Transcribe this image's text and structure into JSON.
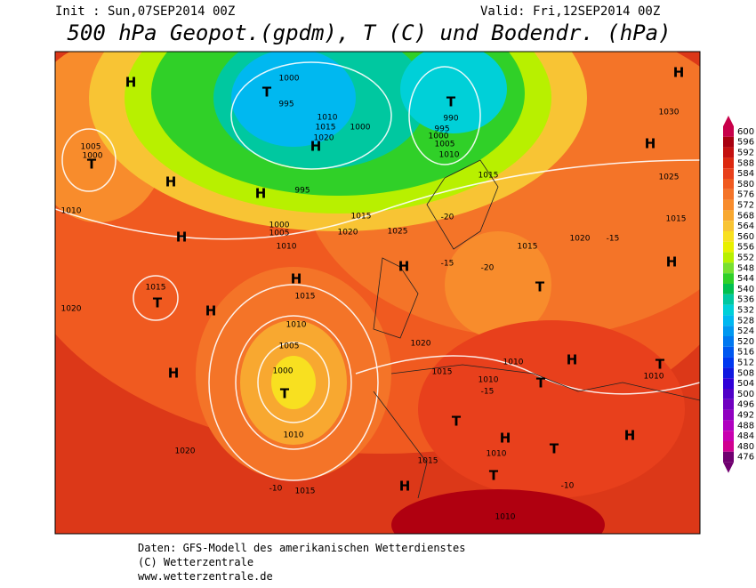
{
  "header": {
    "init": "Init : Sun,07SEP2014 00Z",
    "valid": "Valid: Fri,12SEP2014 00Z",
    "title": "500 hPa Geopot.(gpdm), T (C) und Bodendr. (hPa)"
  },
  "colorbar": {
    "values": [
      600,
      596,
      592,
      588,
      584,
      580,
      576,
      572,
      568,
      564,
      560,
      556,
      552,
      548,
      544,
      540,
      536,
      532,
      528,
      524,
      520,
      516,
      512,
      508,
      504,
      500,
      496,
      492,
      488,
      484,
      480,
      476
    ],
    "colors": [
      "#c8004a",
      "#a80010",
      "#c41010",
      "#dc2810",
      "#e8401c",
      "#f05a20",
      "#f47428",
      "#f88c2c",
      "#f8a830",
      "#f8c434",
      "#f8e020",
      "#e8f000",
      "#b8f000",
      "#78e030",
      "#30d028",
      "#00c050",
      "#00c8a0",
      "#00d0d8",
      "#00b8f0",
      "#0098f0",
      "#0078f0",
      "#0058f0",
      "#0038f0",
      "#1018e0",
      "#3000d8",
      "#5000c8",
      "#7000c0",
      "#9000c0",
      "#b000c0",
      "#c800b0",
      "#d00090",
      "#700070"
    ]
  },
  "map_labels": [
    "H",
    "H",
    "T",
    "1005",
    "1000",
    "H",
    "H",
    "1010",
    "1015",
    "T",
    "H",
    "1020",
    "H",
    "1020",
    "H",
    "1015",
    "1010",
    "1005",
    "1000",
    "T",
    "1010",
    "-10",
    "1015",
    "T",
    "1000",
    "995",
    "1010",
    "1015",
    "1020",
    "H",
    "1000",
    "T",
    "990",
    "995",
    "1000",
    "1005",
    "1010",
    "H",
    "995",
    "1000",
    "1005",
    "1010",
    "1015",
    "1020",
    "1025",
    "H",
    "-15",
    "-20",
    "1015",
    "T",
    "1020",
    "-15",
    "H",
    "1030",
    "1025",
    "1015",
    "H",
    "T",
    "1010",
    "H",
    "1010",
    "T",
    "1020",
    "1015",
    "1010",
    "-15",
    "T",
    "H",
    "1010",
    "T",
    "T",
    "H",
    "1015",
    "H",
    "-10",
    "1010",
    "1015",
    "-20"
  ],
  "footer": [
    "Daten: GFS-Modell des amerikanischen Wetterdienstes",
    "(C) Wetterzentrale",
    "www.wetterzentrale.de"
  ]
}
